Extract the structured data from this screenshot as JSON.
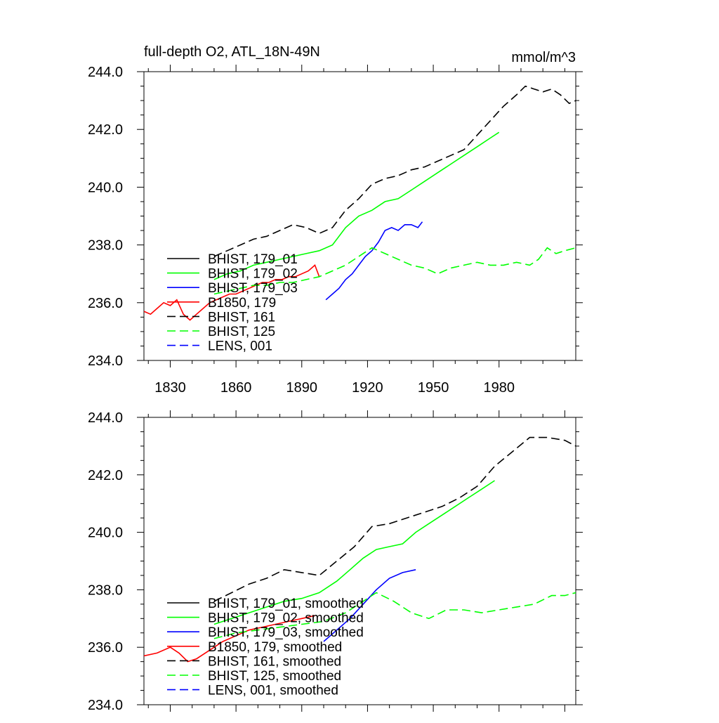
{
  "chart_data": [
    {
      "type": "line",
      "title": "full-depth O2, ATL_18N-49N",
      "units": "mmol/m^3",
      "xlim": [
        1818,
        2015
      ],
      "ylim": [
        234.0,
        244.0
      ],
      "x_ticks": [
        1830,
        1860,
        1890,
        1920,
        1950,
        1980
      ],
      "y_ticks": [
        "234.0",
        "236.0",
        "238.0",
        "240.0",
        "242.0",
        "244.0"
      ],
      "legend_position": "lower-left",
      "series": [
        {
          "name": "BHIST, 179_01",
          "color": "#000000",
          "dash": "solid",
          "x": [],
          "y": []
        },
        {
          "name": "BHIST, 179_02",
          "color": "#00ff00",
          "dash": "solid",
          "x": [
            1850,
            1856,
            1862,
            1868,
            1874,
            1880,
            1886,
            1892,
            1898,
            1904,
            1910,
            1916,
            1922,
            1928,
            1934,
            1940,
            1946,
            1952,
            1958,
            1964,
            1970,
            1976,
            1980
          ],
          "y": [
            236.8,
            237.0,
            237.1,
            237.3,
            237.4,
            237.5,
            237.6,
            237.7,
            237.8,
            238.0,
            238.6,
            239.0,
            239.2,
            239.5,
            239.6,
            239.9,
            240.2,
            240.5,
            240.8,
            241.1,
            241.4,
            241.7,
            241.9
          ]
        },
        {
          "name": "BHIST, 179_03",
          "color": "#0000ff",
          "dash": "solid",
          "x": [
            1901,
            1904,
            1907,
            1910,
            1913,
            1916,
            1919,
            1922,
            1925,
            1928,
            1931,
            1934,
            1937,
            1940,
            1943,
            1945
          ],
          "y": [
            236.1,
            236.3,
            236.5,
            236.8,
            237.0,
            237.3,
            237.6,
            237.8,
            238.1,
            238.5,
            238.6,
            238.5,
            238.7,
            238.7,
            238.6,
            238.8
          ]
        },
        {
          "name": "B1850, 179",
          "color": "#ff0000",
          "dash": "solid",
          "x": [
            1818,
            1821,
            1824,
            1827,
            1830,
            1833,
            1836,
            1839,
            1842,
            1845,
            1848,
            1851,
            1854,
            1857,
            1860,
            1863,
            1866,
            1869,
            1872,
            1875,
            1878,
            1881,
            1884,
            1887,
            1890,
            1893,
            1896,
            1898
          ],
          "y": [
            235.7,
            235.6,
            235.8,
            236.0,
            235.9,
            236.1,
            235.6,
            235.4,
            235.6,
            235.8,
            236.0,
            236.1,
            236.2,
            236.3,
            236.3,
            236.4,
            236.5,
            236.6,
            236.7,
            236.7,
            236.8,
            236.8,
            236.9,
            236.9,
            237.0,
            237.1,
            237.3,
            236.9
          ]
        },
        {
          "name": "BHIST, 161",
          "color": "#000000",
          "dash": "dashed",
          "x": [
            1850,
            1856,
            1862,
            1868,
            1874,
            1880,
            1886,
            1892,
            1898,
            1904,
            1910,
            1916,
            1922,
            1928,
            1934,
            1940,
            1946,
            1952,
            1958,
            1964,
            1970,
            1976,
            1982,
            1988,
            1992,
            1996,
            2000,
            2004,
            2008,
            2012,
            2015
          ],
          "y": [
            237.6,
            237.8,
            238.0,
            238.2,
            238.3,
            238.5,
            238.7,
            238.6,
            238.4,
            238.6,
            239.2,
            239.6,
            240.1,
            240.3,
            240.4,
            240.6,
            240.7,
            240.9,
            241.1,
            241.3,
            241.8,
            242.3,
            242.8,
            243.2,
            243.5,
            243.4,
            243.3,
            243.4,
            243.2,
            242.9,
            243.0
          ]
        },
        {
          "name": "BHIST, 125",
          "color": "#00ff00",
          "dash": "dashed",
          "x": [
            1850,
            1856,
            1862,
            1868,
            1874,
            1880,
            1886,
            1892,
            1898,
            1904,
            1910,
            1916,
            1922,
            1928,
            1934,
            1940,
            1946,
            1952,
            1958,
            1964,
            1970,
            1976,
            1982,
            1988,
            1994,
            1998,
            2002,
            2006,
            2010,
            2015
          ],
          "y": [
            236.3,
            236.4,
            236.5,
            236.6,
            236.6,
            236.7,
            236.7,
            236.8,
            236.9,
            237.1,
            237.3,
            237.6,
            237.9,
            237.7,
            237.5,
            237.3,
            237.2,
            237.0,
            237.2,
            237.3,
            237.4,
            237.3,
            237.3,
            237.4,
            237.3,
            237.5,
            237.9,
            237.7,
            237.8,
            237.9
          ]
        },
        {
          "name": "LENS, 001",
          "color": "#0000ff",
          "dash": "dashed",
          "x": [],
          "y": []
        }
      ]
    },
    {
      "type": "line",
      "xlim": [
        1818,
        2015
      ],
      "ylim": [
        234.0,
        244.0
      ],
      "y_ticks": [
        "234.0",
        "236.0",
        "238.0",
        "240.0",
        "242.0",
        "244.0"
      ],
      "legend_position": "lower-left",
      "series": [
        {
          "name": "BHIST, 179_01, smoothed",
          "color": "#000000",
          "dash": "solid",
          "x": [],
          "y": []
        },
        {
          "name": "BHIST, 179_02, smoothed",
          "color": "#00ff00",
          "dash": "solid",
          "x": [
            1850,
            1858,
            1866,
            1874,
            1882,
            1890,
            1898,
            1906,
            1912,
            1918,
            1924,
            1930,
            1936,
            1942,
            1948,
            1954,
            1960,
            1966,
            1972,
            1978
          ],
          "y": [
            236.8,
            237.0,
            237.2,
            237.4,
            237.6,
            237.7,
            237.9,
            238.3,
            238.7,
            239.1,
            239.4,
            239.5,
            239.6,
            240.0,
            240.3,
            240.6,
            240.9,
            241.2,
            241.5,
            241.8
          ]
        },
        {
          "name": "BHIST, 179_03, smoothed",
          "color": "#0000ff",
          "dash": "solid",
          "x": [
            1900,
            1906,
            1912,
            1918,
            1924,
            1930,
            1936,
            1942
          ],
          "y": [
            236.2,
            236.6,
            237.0,
            237.5,
            238.0,
            238.4,
            238.6,
            238.7
          ]
        },
        {
          "name": "B1850, 179, smoothed",
          "color": "#ff0000",
          "dash": "solid",
          "x": [
            1818,
            1824,
            1830,
            1834,
            1838,
            1842,
            1848,
            1854,
            1860,
            1866,
            1872,
            1878,
            1884,
            1890,
            1896
          ],
          "y": [
            235.7,
            235.8,
            236.0,
            235.8,
            235.5,
            235.6,
            235.9,
            236.2,
            236.4,
            236.6,
            236.7,
            236.8,
            236.9,
            237.0,
            237.1
          ]
        },
        {
          "name": "BHIST, 161, smoothed",
          "color": "#000000",
          "dash": "dashed",
          "x": [
            1850,
            1858,
            1866,
            1874,
            1882,
            1890,
            1898,
            1906,
            1914,
            1922,
            1930,
            1938,
            1946,
            1954,
            1962,
            1970,
            1978,
            1986,
            1994,
            2002,
            2010,
            2015
          ],
          "y": [
            237.6,
            237.9,
            238.2,
            238.4,
            238.7,
            238.6,
            238.5,
            239.0,
            239.5,
            240.2,
            240.3,
            240.5,
            240.7,
            240.9,
            241.2,
            241.6,
            242.3,
            242.8,
            243.3,
            243.3,
            243.2,
            243.0
          ]
        },
        {
          "name": "BHIST, 125, smoothed",
          "color": "#00ff00",
          "dash": "dashed",
          "x": [
            1850,
            1860,
            1870,
            1880,
            1890,
            1900,
            1910,
            1918,
            1924,
            1932,
            1940,
            1948,
            1956,
            1964,
            1972,
            1980,
            1988,
            1996,
            2004,
            2010,
            2015
          ],
          "y": [
            236.3,
            236.5,
            236.6,
            236.7,
            236.8,
            236.9,
            237.2,
            237.6,
            237.9,
            237.6,
            237.2,
            237.0,
            237.3,
            237.3,
            237.2,
            237.3,
            237.4,
            237.5,
            237.8,
            237.8,
            237.9
          ]
        },
        {
          "name": "LENS, 001, smoothed",
          "color": "#0000ff",
          "dash": "dashed",
          "x": [],
          "y": []
        }
      ]
    }
  ]
}
